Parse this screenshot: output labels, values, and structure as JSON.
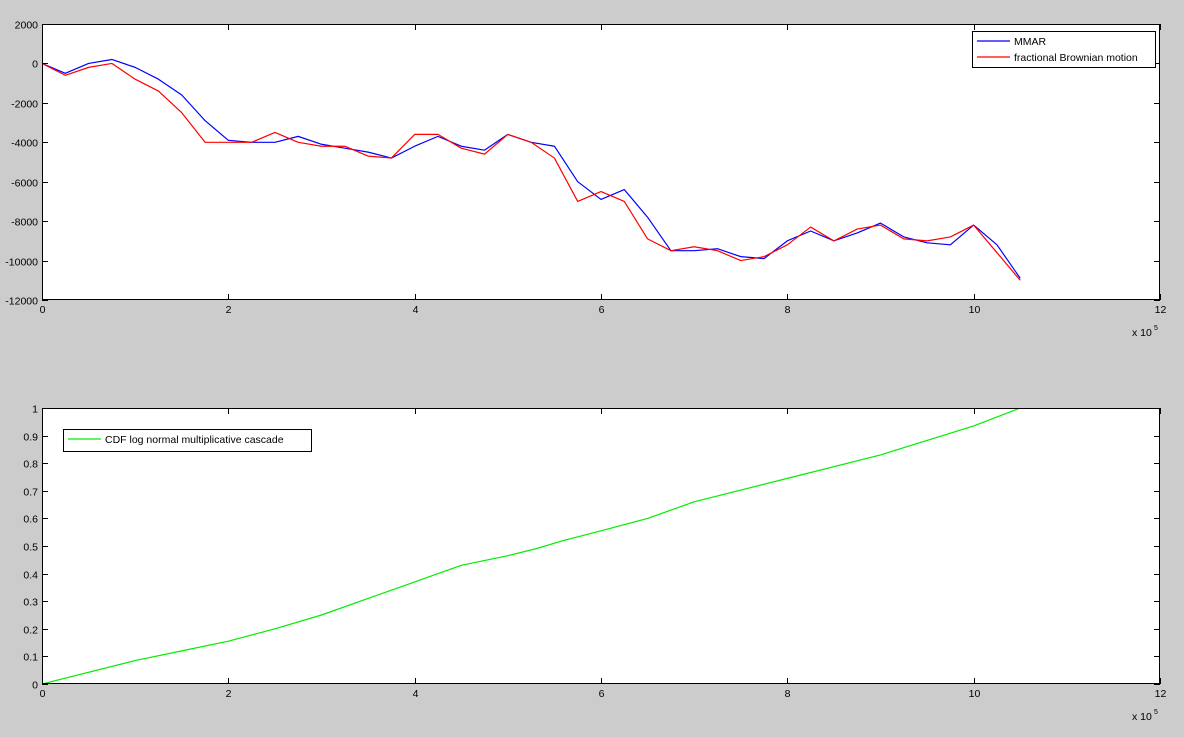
{
  "figure": {
    "background": "#cccccc",
    "axes_background": "#ffffff",
    "axes_color": "#000000"
  },
  "chart_data": [
    {
      "type": "line",
      "title": "",
      "xlabel": "",
      "ylabel": "",
      "xlim": [
        0,
        1200000
      ],
      "ylim": [
        -12000,
        2000
      ],
      "x_ticks": [
        0,
        200000,
        400000,
        600000,
        800000,
        1000000,
        1200000
      ],
      "x_tick_labels": [
        "0",
        "2",
        "4",
        "6",
        "8",
        "10",
        "12"
      ],
      "x_exponent_label": "x 10",
      "x_exponent_sup": "5",
      "y_ticks": [
        -12000,
        -10000,
        -8000,
        -6000,
        -4000,
        -2000,
        0,
        2000
      ],
      "y_tick_labels": [
        "-12000",
        "-10000",
        "-8000",
        "-6000",
        "-4000",
        "-2000",
        "0",
        "2000"
      ],
      "grid": false,
      "legend_placement": "top-right",
      "legend_line_color": "#000000",
      "x": [
        0,
        25000,
        50000,
        75000,
        100000,
        125000,
        150000,
        175000,
        200000,
        225000,
        250000,
        275000,
        300000,
        325000,
        350000,
        375000,
        400000,
        425000,
        450000,
        475000,
        500000,
        525000,
        550000,
        575000,
        600000,
        625000,
        650000,
        675000,
        700000,
        725000,
        750000,
        775000,
        800000,
        825000,
        850000,
        875000,
        900000,
        925000,
        950000,
        975000,
        1000000,
        1025000,
        1050000
      ],
      "series": [
        {
          "name": "MMAR",
          "color": "#0000ff",
          "values": [
            0,
            -500,
            0,
            200,
            -200,
            -800,
            -1600,
            -2900,
            -3900,
            -4000,
            -4000,
            -3700,
            -4100,
            -4300,
            -4500,
            -4800,
            -4200,
            -3700,
            -4200,
            -4400,
            -3600,
            -4000,
            -4200,
            -6000,
            -6900,
            -6400,
            -7800,
            -9500,
            -9500,
            -9400,
            -9800,
            -9900,
            -9000,
            -8500,
            -9000,
            -8600,
            -8100,
            -8800,
            -9100,
            -9200,
            -8200,
            -9200,
            -10900
          ]
        },
        {
          "name": "fractional Brownian motion",
          "color": "#ff0000",
          "values": [
            0,
            -600,
            -200,
            0,
            -800,
            -1400,
            -2500,
            -4000,
            -4000,
            -4000,
            -3500,
            -4000,
            -4200,
            -4200,
            -4700,
            -4800,
            -3600,
            -3600,
            -4300,
            -4600,
            -3600,
            -4000,
            -4800,
            -7000,
            -6500,
            -7000,
            -8900,
            -9500,
            -9300,
            -9500,
            -10000,
            -9800,
            -9200,
            -8300,
            -9000,
            -8400,
            -8200,
            -8900,
            -9000,
            -8800,
            -8200,
            -9600,
            -11000
          ]
        }
      ]
    },
    {
      "type": "line",
      "title": "",
      "xlabel": "",
      "ylabel": "",
      "xlim": [
        0,
        1200000
      ],
      "ylim": [
        0,
        1
      ],
      "x_ticks": [
        0,
        200000,
        400000,
        600000,
        800000,
        1000000,
        1200000
      ],
      "x_tick_labels": [
        "0",
        "2",
        "4",
        "6",
        "8",
        "10",
        "12"
      ],
      "x_exponent_label": "x 10",
      "x_exponent_sup": "5",
      "y_ticks": [
        0,
        0.1,
        0.2,
        0.3,
        0.4,
        0.5,
        0.6,
        0.7,
        0.8,
        0.9,
        1
      ],
      "y_tick_labels": [
        "0",
        "0.1",
        "0.2",
        "0.3",
        "0.4",
        "0.5",
        "0.6",
        "0.7",
        "0.8",
        "0.9",
        "1"
      ],
      "grid": false,
      "legend_placement": "top-left",
      "legend_line_color": "#000000",
      "x": [
        0,
        100000,
        150000,
        200000,
        250000,
        300000,
        350000,
        400000,
        450000,
        500000,
        530000,
        560000,
        600000,
        650000,
        700000,
        800000,
        900000,
        1000000,
        1050000
      ],
      "series": [
        {
          "name": "CDF log normal multiplicative cascade",
          "color": "#00ee00",
          "values": [
            0,
            0.085,
            0.12,
            0.155,
            0.2,
            0.25,
            0.31,
            0.37,
            0.43,
            0.465,
            0.49,
            0.52,
            0.555,
            0.6,
            0.66,
            0.745,
            0.83,
            0.935,
            1
          ]
        }
      ]
    }
  ]
}
